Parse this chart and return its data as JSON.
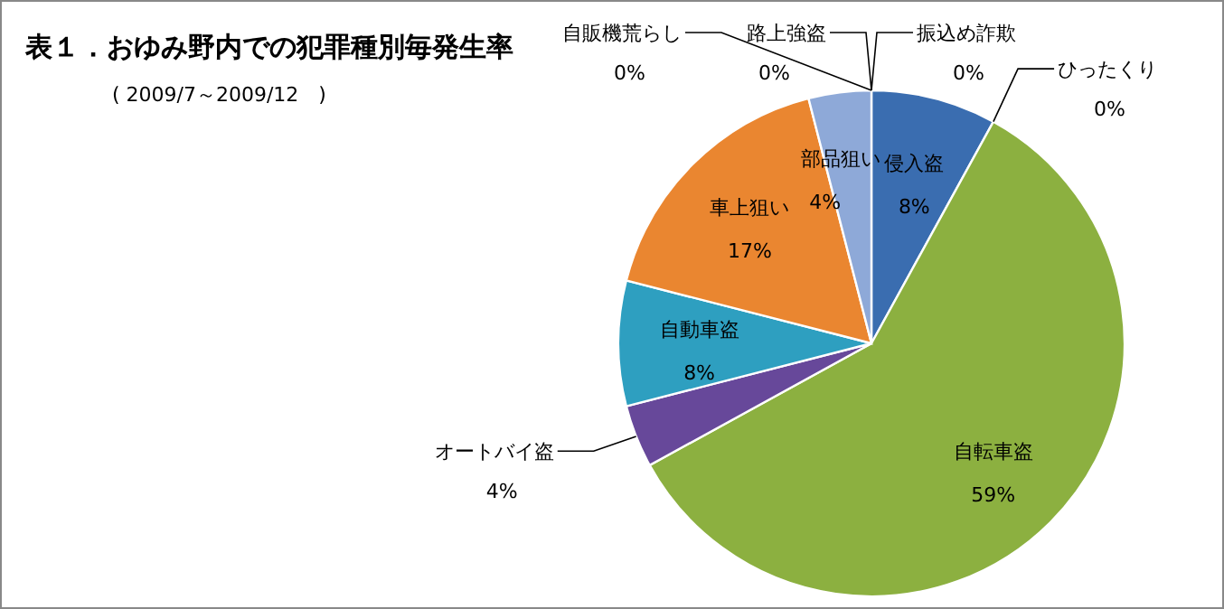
{
  "chart_data": {
    "type": "pie",
    "title": "表１．おゆみ野内での犯罪種別毎発生率",
    "subtitle": "( 2009/7～2009/12　)",
    "categories": [
      "振込め詐欺",
      "侵入盗",
      "ひったくり",
      "自転車盗",
      "オートバイ盗",
      "自動車盗",
      "車上狙い",
      "部品狙い",
      "路上強盗",
      "自販機荒らし"
    ],
    "values": [
      0,
      8,
      0,
      59,
      4,
      8,
      17,
      4,
      0,
      0
    ],
    "colors": [
      "#c0504d",
      "#3a6db0",
      "#2c4d75",
      "#8cb040",
      "#67489a",
      "#2e9fc0",
      "#ea8630",
      "#8ea9d8",
      "#d99694",
      "#b3a2c7"
    ],
    "value_labels": [
      "0%",
      "8%",
      "0%",
      "59%",
      "4%",
      "8%",
      "17%",
      "4%",
      "0%",
      "0%"
    ]
  }
}
